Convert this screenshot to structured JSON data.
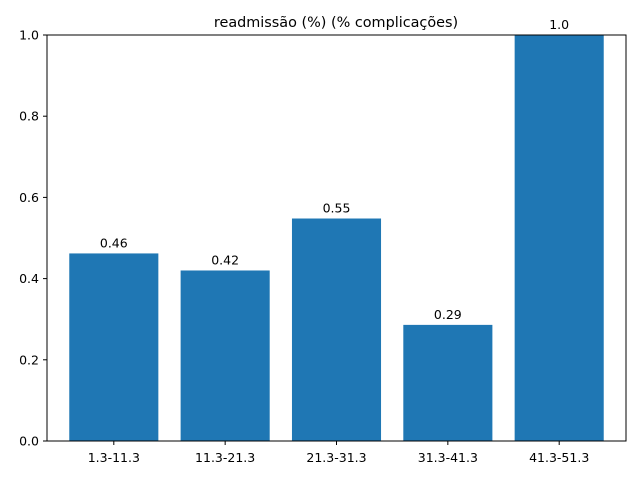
{
  "chart_data": {
    "type": "bar",
    "title": "readmissão (%) (% complicações)",
    "xlabel": "",
    "ylabel": "",
    "categories": [
      "1.3-11.3",
      "11.3-21.3",
      "21.3-31.3",
      "31.3-41.3",
      "41.3-51.3"
    ],
    "values": [
      0.462,
      0.42,
      0.548,
      0.286,
      1.0
    ],
    "value_labels": [
      "0.46",
      "0.42",
      "0.55",
      "0.29",
      "1.0"
    ],
    "ylim": [
      0,
      1.0
    ],
    "yticks": [
      0.0,
      0.2,
      0.4,
      0.6,
      0.8,
      1.0
    ],
    "ytick_labels": [
      "0.0",
      "0.2",
      "0.4",
      "0.6",
      "0.8",
      "1.0"
    ],
    "grid": false,
    "legend": "none",
    "bar_color": "#1f77b4"
  }
}
